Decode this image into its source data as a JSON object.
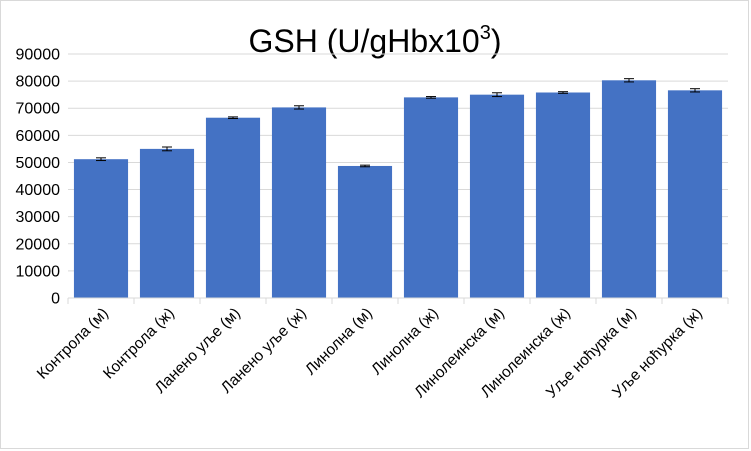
{
  "chart_data": {
    "type": "bar",
    "title": "GSH (U/gHbx10",
    "title_superscript": "3",
    "title_close": ")",
    "categories": [
      "Контрола (м)",
      "Контрола (ж)",
      "Ланено уље (м)",
      "Ланено уље (ж)",
      "Линолна (м)",
      "Линолна (ж)",
      "Линолеинска (м)",
      "Линолеинска (ж)",
      "Уље ноћурка (м)",
      "Уље ноћурка (ж)"
    ],
    "values": [
      51200,
      55000,
      66500,
      70300,
      48700,
      74000,
      75000,
      75800,
      80300,
      76600
    ],
    "errors": [
      500,
      700,
      300,
      600,
      300,
      300,
      700,
      300,
      600,
      600
    ],
    "ylim": [
      0,
      90000
    ],
    "yticks": [
      0,
      10000,
      20000,
      30000,
      40000,
      50000,
      60000,
      70000,
      80000,
      90000
    ],
    "xlabel": "",
    "ylabel": "",
    "grid": true,
    "bar_color": "#4472c4",
    "grid_color": "#d9d9d9",
    "legend": "none"
  }
}
